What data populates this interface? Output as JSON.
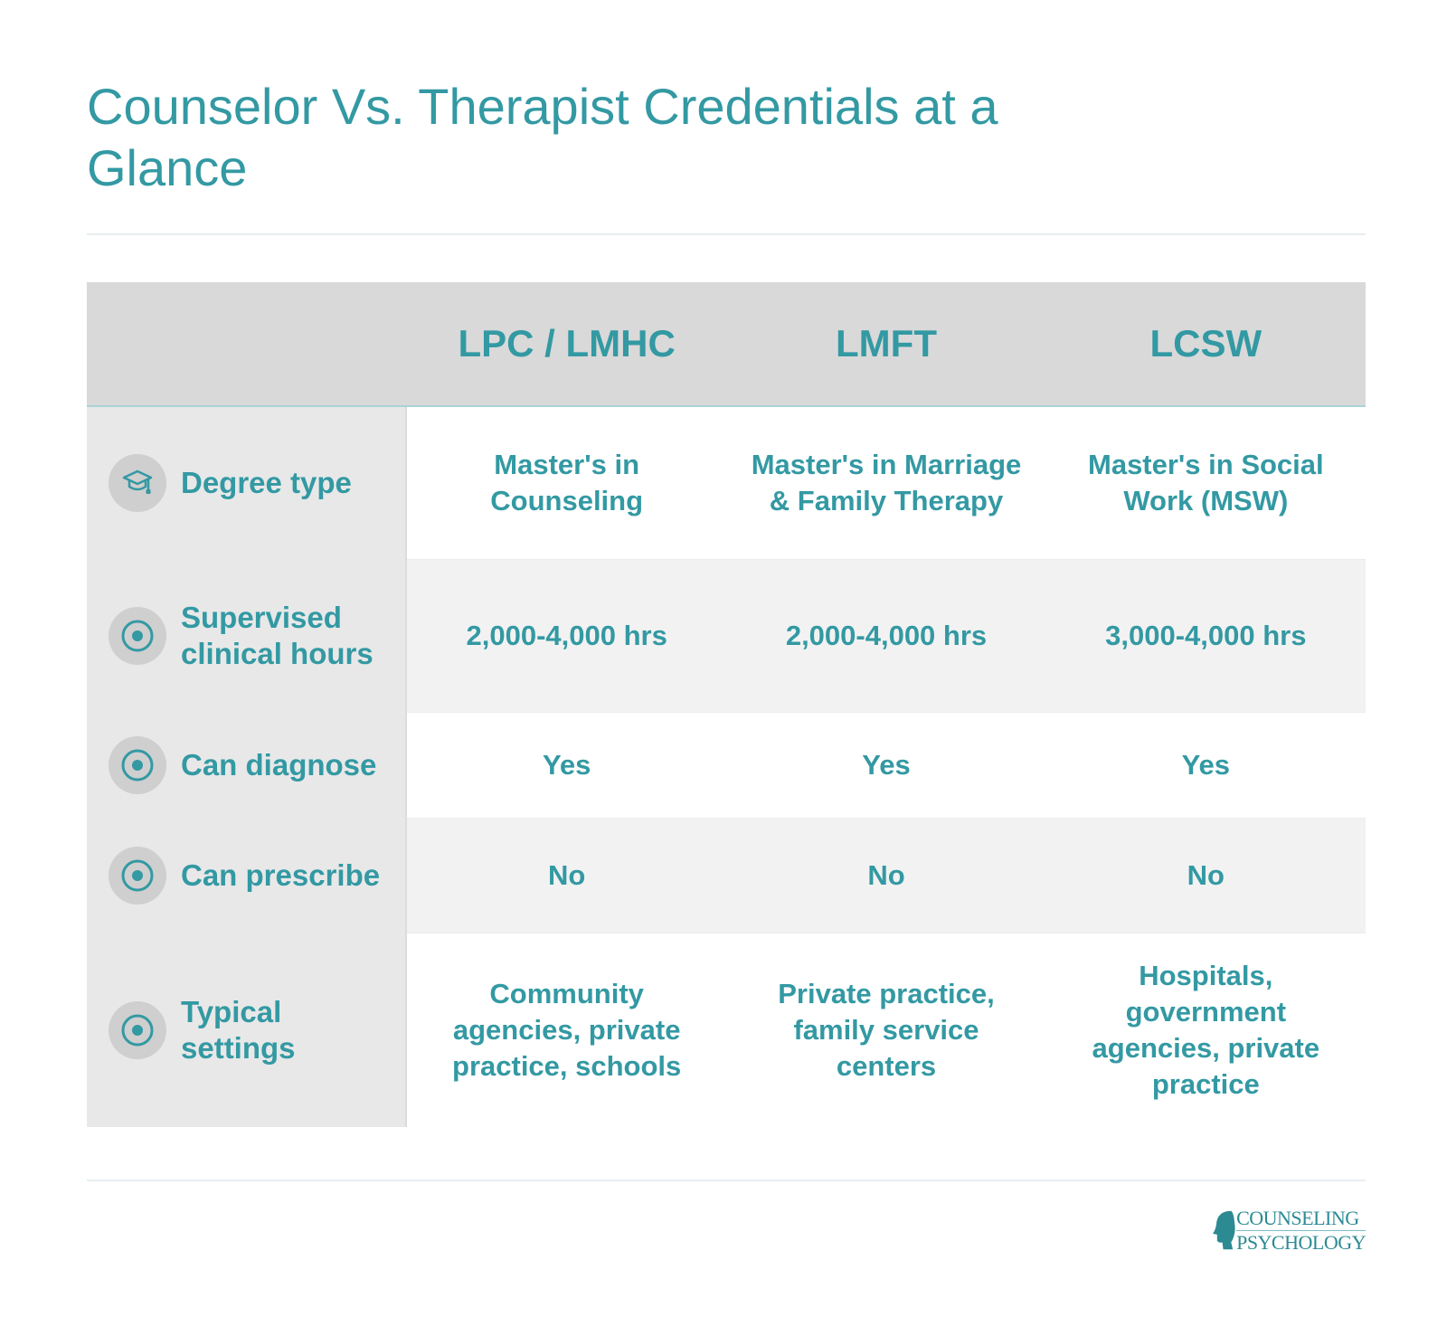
{
  "title": "Counselor Vs. Therapist Credentials at a Glance",
  "columns": [
    "LPC / LMHC",
    "LMFT",
    "LCSW"
  ],
  "rows": [
    {
      "label": "Degree type",
      "icon": "graduation-cap-icon",
      "values": [
        "Master's in Counseling",
        "Master's in Marriage & Family Therapy",
        "Master's in Social Work (MSW)"
      ]
    },
    {
      "label": "Supervised clinical hours",
      "icon": "target-icon",
      "values": [
        "2,000-4,000 hrs",
        "2,000-4,000 hrs",
        "3,000-4,000 hrs"
      ]
    },
    {
      "label": "Can diagnose",
      "icon": "target-icon",
      "values": [
        "Yes",
        "Yes",
        "Yes"
      ]
    },
    {
      "label": "Can prescribe",
      "icon": "target-icon",
      "values": [
        "No",
        "No",
        "No"
      ]
    },
    {
      "label": "Typical settings",
      "icon": "target-icon",
      "values": [
        "Community agencies, private practice, schools",
        "Private practice, family service centers",
        "Hospitals, government agencies, private practice"
      ]
    }
  ],
  "logo": {
    "line1": "COUNSELING",
    "line2": "PSYCHOLOGY"
  }
}
